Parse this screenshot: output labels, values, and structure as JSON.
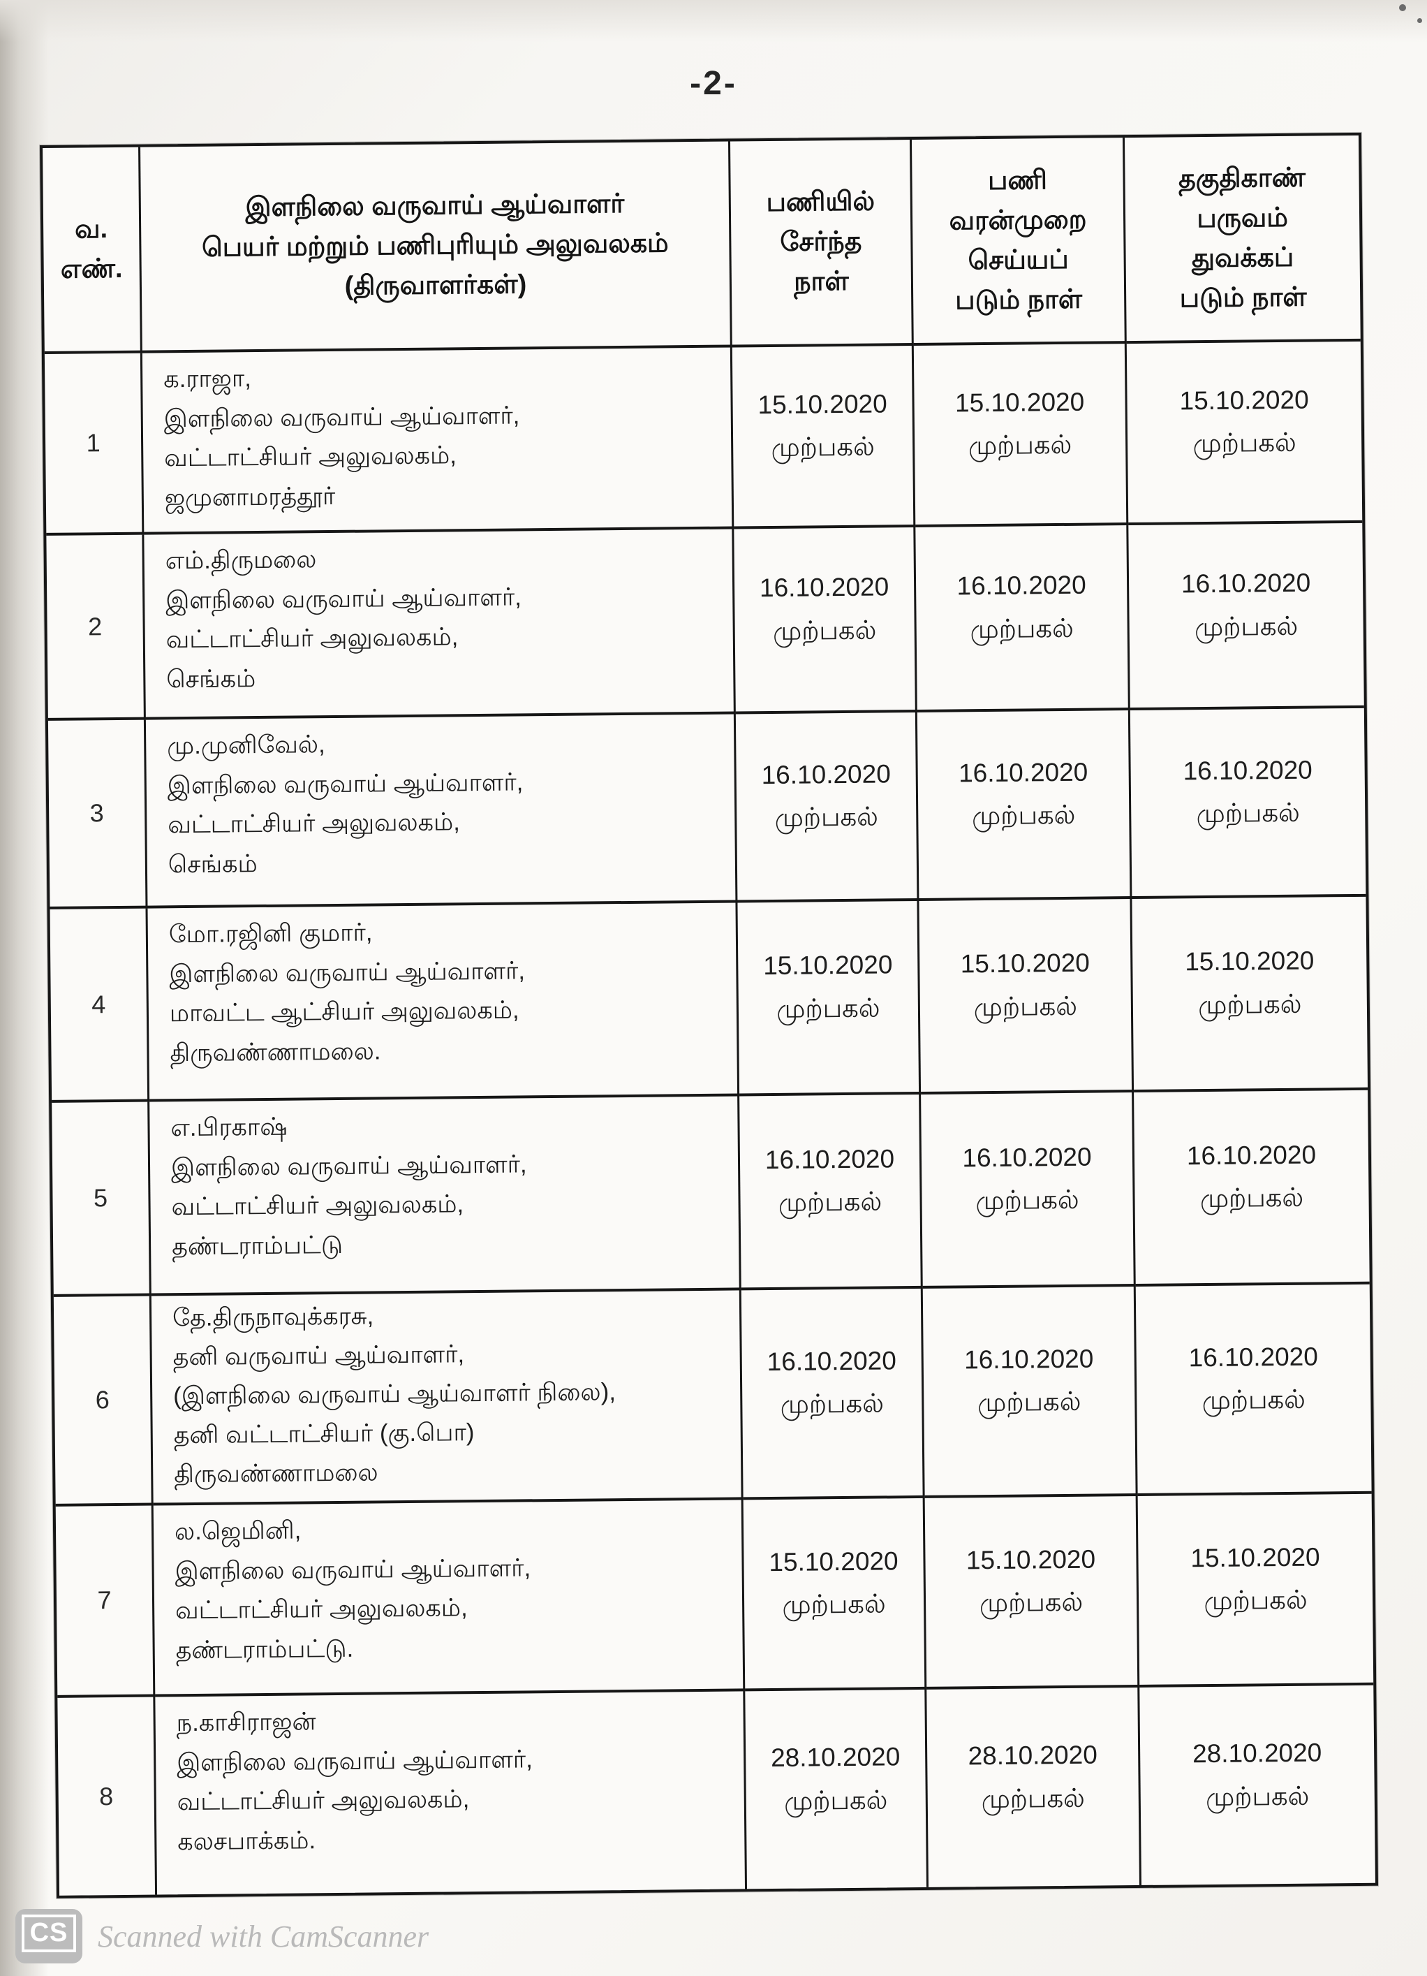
{
  "page": {
    "number_label": "-2-"
  },
  "colors": {
    "ink": "#1b1b1b",
    "paper": "#f7f6f3",
    "watermark_gray": "#b9b9b9"
  },
  "table": {
    "headers": {
      "serial": "வ.\nஎண்.",
      "name_office": "இளநிலை வருவாய் ஆய்வாளர்\nபெயர் மற்றும் பணிபுரியும் அலுவலகம்\n(திருவாளர்கள்)",
      "date_joined": "பணியில்\nசேர்ந்த\nநாள்",
      "date_regularized": "பணி\nவரன்முறை\nசெய்யப்\nபடும் நாள்",
      "date_probation": "தகுதிகாண்\nபருவம்\nதுவக்கப்\nபடும் நாள்"
    },
    "rows": [
      {
        "no": "1",
        "name": "க.ராஜா,\nஇளநிலை வருவாய் ஆய்வாளர்,\nவட்டாட்சியர் அலுவலகம்,\nஜமுனாமரத்தூர்",
        "joined": "15.10.2020\nமுற்பகல்",
        "regularized": "15.10.2020\nமுற்பகல்",
        "probation": "15.10.2020\nமுற்பகல்"
      },
      {
        "no": "2",
        "name": "எம்.திருமலை\nஇளநிலை வருவாய் ஆய்வாளர்,\nவட்டாட்சியர் அலுவலகம்,\nசெங்கம்",
        "joined": "16.10.2020\nமுற்பகல்",
        "regularized": "16.10.2020\nமுற்பகல்",
        "probation": "16.10.2020\nமுற்பகல்"
      },
      {
        "no": "3",
        "name": "மு.முனிவேல்,\nஇளநிலை வருவாய் ஆய்வாளர்,\nவட்டாட்சியர் அலுவலகம்,\nசெங்கம்",
        "joined": "16.10.2020\nமுற்பகல்",
        "regularized": "16.10.2020\nமுற்பகல்",
        "probation": "16.10.2020\nமுற்பகல்"
      },
      {
        "no": "4",
        "name": "மோ.ரஜினி குமார்,\nஇளநிலை வருவாய் ஆய்வாளர்,\nமாவட்ட ஆட்சியர் அலுவலகம்,\nதிருவண்ணாமலை.",
        "joined": "15.10.2020\nமுற்பகல்",
        "regularized": "15.10.2020\nமுற்பகல்",
        "probation": "15.10.2020\nமுற்பகல்"
      },
      {
        "no": "5",
        "name": "எ.பிரகாஷ்\nஇளநிலை வருவாய் ஆய்வாளர்,\nவட்டாட்சியர் அலுவலகம்,\nதண்டராம்பட்டு",
        "joined": "16.10.2020\nமுற்பகல்",
        "regularized": "16.10.2020\nமுற்பகல்",
        "probation": "16.10.2020\nமுற்பகல்"
      },
      {
        "no": "6",
        "name": "தே.திருநாவுக்கரசு,\nதனி வருவாய் ஆய்வாளர்,\n(இளநிலை வருவாய் ஆய்வாளர் நிலை),\nதனி வட்டாட்சியர் (கு.பொ)\nதிருவண்ணாமலை",
        "joined": "16.10.2020\nமுற்பகல்",
        "regularized": "16.10.2020\nமுற்பகல்",
        "probation": "16.10.2020\nமுற்பகல்"
      },
      {
        "no": "7",
        "name": "ல.ஜெமினி,\nஇளநிலை வருவாய் ஆய்வாளர்,\nவட்டாட்சியர் அலுவலகம்,\nதண்டராம்பட்டு.",
        "joined": "15.10.2020\nமுற்பகல்",
        "regularized": "15.10.2020\nமுற்பகல்",
        "probation": "15.10.2020\nமுற்பகல்"
      },
      {
        "no": "8",
        "name": "ந.காசிராஜன்\nஇளநிலை வருவாய் ஆய்வாளர்,\nவட்டாட்சியர் அலுவலகம்,\nகலசபாக்கம்.",
        "joined": "28.10.2020\nமுற்பகல்",
        "regularized": "28.10.2020\nமுற்பகல்",
        "probation": "28.10.2020\nமுற்பகல்"
      }
    ]
  },
  "footer": {
    "badge": "CS",
    "watermark": "Scanned with CamScanner"
  }
}
